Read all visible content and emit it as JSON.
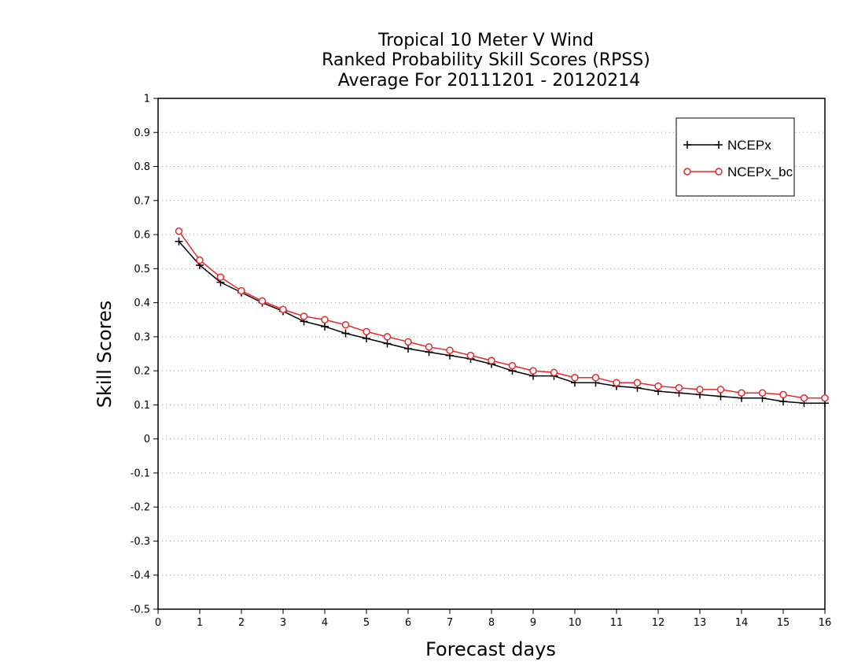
{
  "chart_data": {
    "type": "line",
    "title": [
      "Tropical 10 Meter V Wind",
      "Ranked Probability Skill Scores (RPSS)",
      "Average For 20111201 - 20120214"
    ],
    "xlabel": "Forecast days",
    "ylabel": "Skill Scores",
    "xlim": [
      0,
      16
    ],
    "ylim": [
      -0.5,
      1
    ],
    "xticks": [
      "0",
      "1",
      "2",
      "3",
      "4",
      "5",
      "6",
      "7",
      "8",
      "9",
      "10",
      "11",
      "12",
      "13",
      "14",
      "15",
      "16"
    ],
    "yticks": [
      "1",
      "0.9",
      "0.8",
      "0.7",
      "0.6",
      "0.5",
      "0.4",
      "0.3",
      "0.2",
      "0.1",
      "0",
      "-0.1",
      "-0.2",
      "-0.3",
      "-0.4",
      "-0.5"
    ],
    "grid": "horizontal dotted",
    "legend_position": "top-right",
    "x": [
      0.5,
      1,
      1.5,
      2,
      2.5,
      3,
      3.5,
      4,
      4.5,
      5,
      5.5,
      6,
      6.5,
      7,
      7.5,
      8,
      8.5,
      9,
      9.5,
      10,
      10.5,
      11,
      11.5,
      12,
      12.5,
      13,
      13.5,
      14,
      14.5,
      15,
      15.5,
      16
    ],
    "series": [
      {
        "name": "NCEPx",
        "color": "#000000",
        "marker": "plus",
        "values": [
          0.58,
          0.51,
          0.46,
          0.43,
          0.4,
          0.375,
          0.345,
          0.33,
          0.31,
          0.295,
          0.28,
          0.265,
          0.255,
          0.245,
          0.235,
          0.22,
          0.2,
          0.185,
          0.185,
          0.165,
          0.165,
          0.155,
          0.15,
          0.14,
          0.135,
          0.13,
          0.125,
          0.12,
          0.12,
          0.11,
          0.105,
          0.105
        ]
      },
      {
        "name": "NCEPx_bc",
        "color": "#e8282d",
        "marker": "circle",
        "values": [
          0.61,
          0.525,
          0.475,
          0.435,
          0.405,
          0.38,
          0.36,
          0.35,
          0.335,
          0.315,
          0.3,
          0.285,
          0.27,
          0.26,
          0.245,
          0.23,
          0.215,
          0.2,
          0.195,
          0.18,
          0.18,
          0.165,
          0.165,
          0.155,
          0.15,
          0.145,
          0.145,
          0.135,
          0.135,
          0.13,
          0.12,
          0.12
        ]
      }
    ]
  }
}
